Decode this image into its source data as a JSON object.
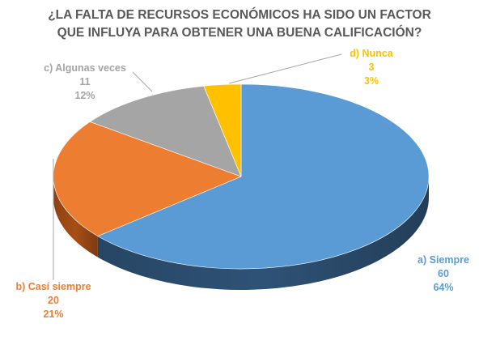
{
  "chart_data": {
    "type": "pie",
    "title": "¿LA FALTA DE RECURSOS ECONÓMICOS HA SIDO UN FACTOR QUE INFLUYA PARA OBTENER UNA BUENA CALIFICACIÓN?",
    "title_lines": [
      "¿LA FALTA DE RECURSOS ECONÓMICOS HA SIDO UN FACTOR",
      "QUE INFLUYA PARA OBTENER UNA BUENA CALIFICACIÓN?"
    ],
    "style": "3d",
    "start_angle_deg": 0,
    "direction": "clockwise",
    "slices": [
      {
        "label": "a) Siempre",
        "value": 60,
        "percent": "64%",
        "color": "#5b9bd5",
        "side_color": "#2e5276"
      },
      {
        "label": "b) Casí siempre",
        "value": 20,
        "percent": "21%",
        "color": "#ed7d31",
        "side_color": "#a64e15"
      },
      {
        "label": "c) Algunas veces",
        "value": 11,
        "percent": "12%",
        "color": "#a5a5a5",
        "side_color": "#707070"
      },
      {
        "label": "d) Nunca",
        "value": 3,
        "percent": "3%",
        "color": "#ffc000",
        "side_color": "#b38600"
      }
    ],
    "labels": {
      "a": {
        "name": "a) Siempre",
        "value": "60",
        "percent": "64%"
      },
      "b": {
        "name": "b) Casí siempre",
        "value": "20",
        "percent": "21%"
      },
      "c": {
        "name": "c) Algunas veces",
        "value": "11",
        "percent": "12%"
      },
      "d": {
        "name": "d) Nunca",
        "value": "3",
        "percent": "3%"
      }
    }
  }
}
